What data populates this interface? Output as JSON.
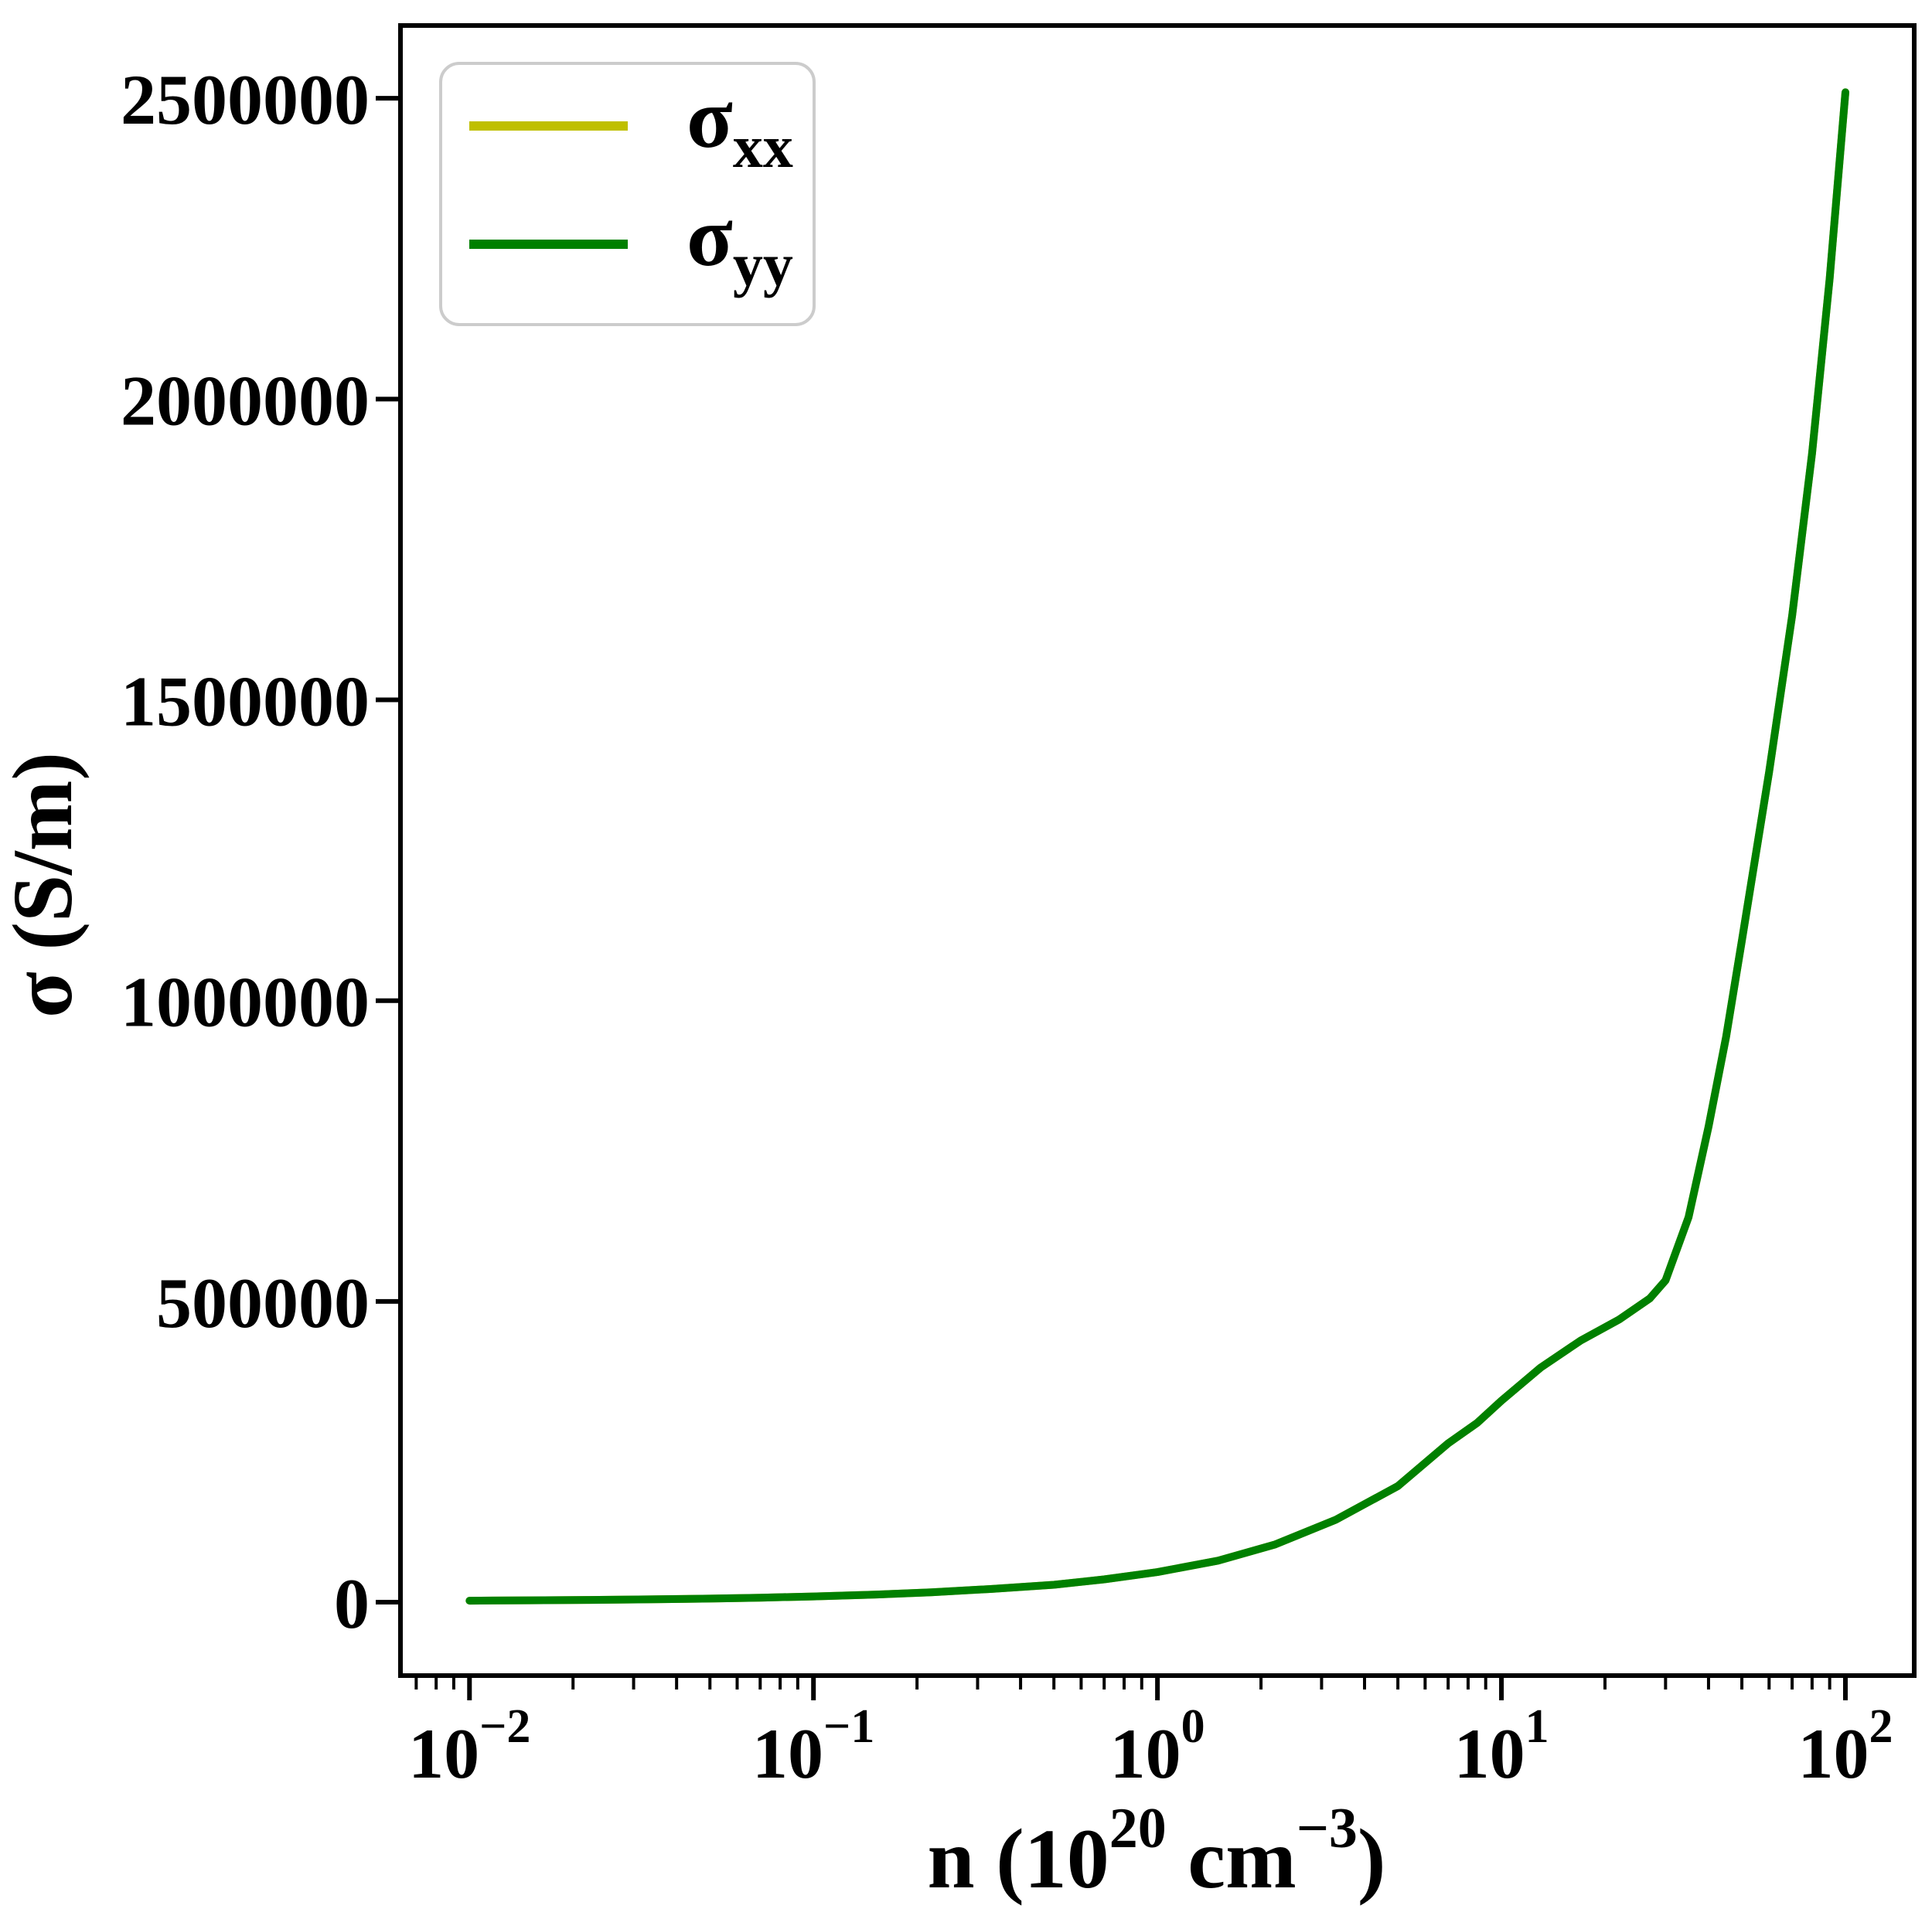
{
  "figure": {
    "background": "#ffffff"
  },
  "axes": {
    "frame_color": "#000000",
    "tick_color": "#000000",
    "ylabel": "σ (S/m)",
    "xlabel": {
      "pre": "n (10",
      "sup1": "20",
      "mid": " cm",
      "sup2": "−3",
      "post": ")"
    },
    "yticks": [
      {
        "value": 0,
        "label": "0"
      },
      {
        "value": 500000,
        "label": "500000"
      },
      {
        "value": 1000000,
        "label": "1000000"
      },
      {
        "value": 1500000,
        "label": "1500000"
      },
      {
        "value": 2000000,
        "label": "2000000"
      },
      {
        "value": 2500000,
        "label": "2500000"
      }
    ],
    "xticks": [
      {
        "exponent": -2,
        "base": "10",
        "exp_label": "−2"
      },
      {
        "exponent": -1,
        "base": "10",
        "exp_label": "−1"
      },
      {
        "exponent": 0,
        "base": "10",
        "exp_label": "0"
      },
      {
        "exponent": 1,
        "base": "10",
        "exp_label": "1"
      },
      {
        "exponent": 2,
        "base": "10",
        "exp_label": "2"
      }
    ]
  },
  "legend": {
    "border_color": "#cccccc",
    "fill_color": "#ffffff",
    "items": [
      {
        "base": "σ",
        "sub": "xx",
        "color": "#bfbf00"
      },
      {
        "base": "σ",
        "sub": "yy",
        "color": "#008000"
      }
    ]
  },
  "chart_data": {
    "type": "line",
    "title": "",
    "xlabel": "n (10^20 cm^-3)",
    "ylabel": "σ (S/m)",
    "xscale": "log",
    "yscale": "linear",
    "xlim": [
      0.0063,
      158.5
    ],
    "ylim": [
      -122000,
      2621000
    ],
    "grid": false,
    "legend_position": "upper left",
    "x": [
      0.01,
      0.015,
      0.022,
      0.033,
      0.05,
      0.07,
      0.1,
      0.15,
      0.22,
      0.33,
      0.5,
      0.7,
      1.0,
      1.5,
      2.2,
      3.3,
      5.0,
      7.0,
      8.5,
      10,
      13,
      17,
      22,
      27,
      30,
      35,
      40,
      45,
      50,
      60,
      70,
      80,
      90,
      100
    ],
    "series": [
      {
        "name": "σ_xx",
        "color": "#bfbf00",
        "values": [
          2500,
          3100,
          3800,
          4700,
          6000,
          7500,
          9500,
          12500,
          16500,
          22000,
          29000,
          38000,
          50000,
          69000,
          96000,
          137000,
          193000,
          264000,
          298000,
          335000,
          390000,
          435000,
          470000,
          505000,
          535000,
          640000,
          790000,
          940000,
          1100000,
          1380000,
          1640000,
          1910000,
          2200000,
          2510000
        ]
      },
      {
        "name": "σ_yy",
        "color": "#008000",
        "values": [
          2500,
          3100,
          3800,
          4700,
          6000,
          7500,
          9500,
          12500,
          16500,
          22000,
          29000,
          38000,
          50000,
          69000,
          96000,
          137000,
          193000,
          264000,
          298000,
          335000,
          390000,
          435000,
          470000,
          505000,
          535000,
          640000,
          790000,
          940000,
          1100000,
          1380000,
          1640000,
          1910000,
          2200000,
          2510000
        ]
      }
    ],
    "note": "σ_xx and σ_yy curves coincide exactly; σ_yy (green) is drawn on top and fully covers σ_xx (yellow)."
  }
}
